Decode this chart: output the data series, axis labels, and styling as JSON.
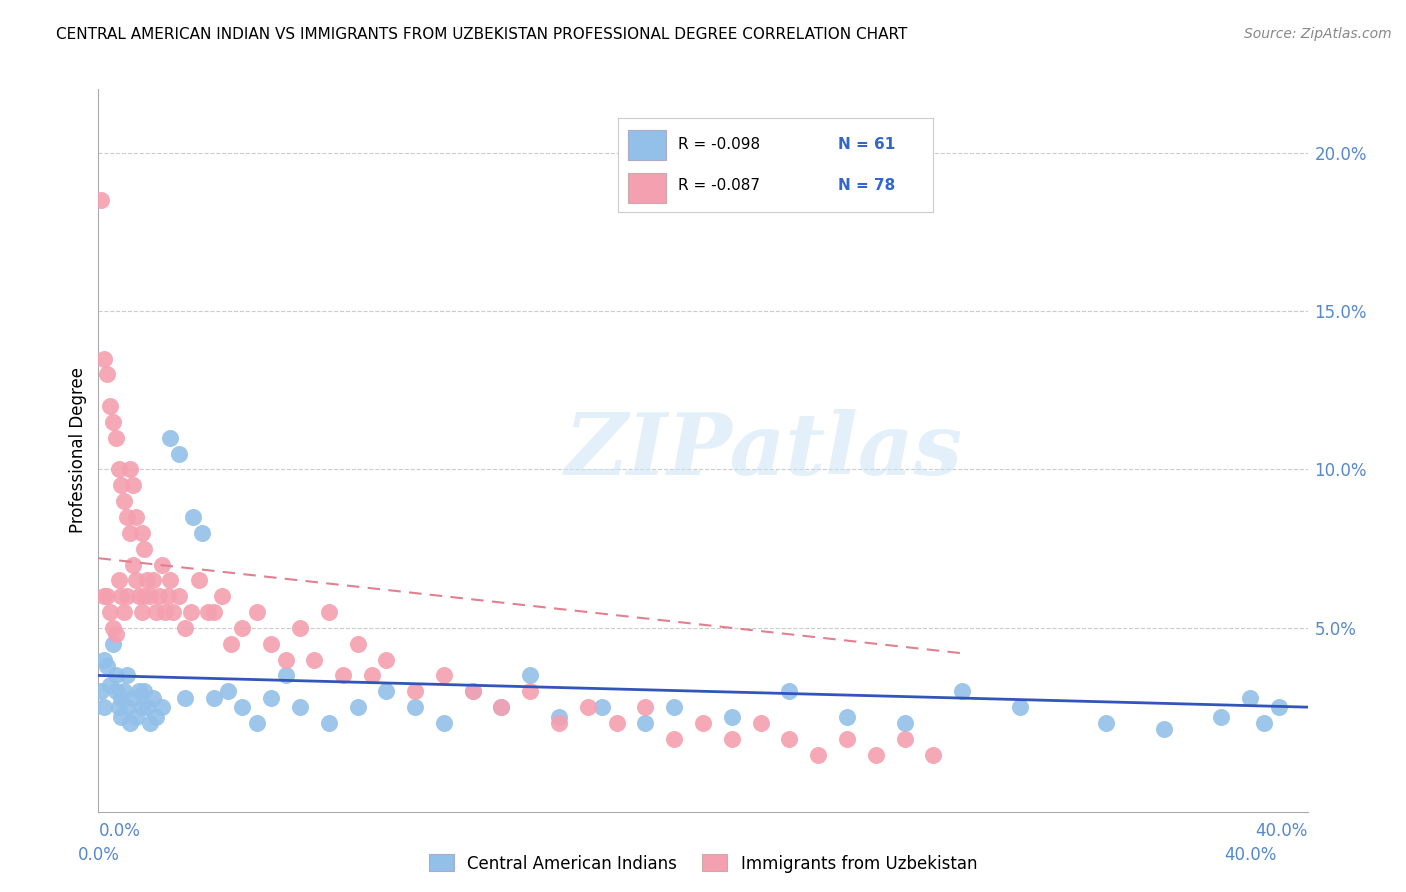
{
  "title": "CENTRAL AMERICAN INDIAN VS IMMIGRANTS FROM UZBEKISTAN PROFESSIONAL DEGREE CORRELATION CHART",
  "source": "Source: ZipAtlas.com",
  "ylabel": "Professional Degree",
  "xlim": [
    0.0,
    0.42
  ],
  "ylim": [
    -0.008,
    0.22
  ],
  "watermark": "ZIPatlas",
  "legend_label1": "Central American Indians",
  "legend_label2": "Immigrants from Uzbekistan",
  "blue_color": "#92c0e8",
  "pink_color": "#f4a0b0",
  "blue_line_color": "#3355bb",
  "pink_line_color": "#e08090",
  "right_ytick_vals": [
    0.0,
    0.05,
    0.1,
    0.15,
    0.2
  ],
  "right_ytick_labels": [
    "",
    "5.0%",
    "10.0%",
    "15.0%",
    "20.0%"
  ],
  "blue_scatter_x": [
    0.001,
    0.002,
    0.002,
    0.003,
    0.004,
    0.005,
    0.006,
    0.006,
    0.007,
    0.008,
    0.008,
    0.009,
    0.01,
    0.01,
    0.011,
    0.012,
    0.013,
    0.014,
    0.015,
    0.016,
    0.017,
    0.018,
    0.019,
    0.02,
    0.022,
    0.025,
    0.028,
    0.03,
    0.033,
    0.036,
    0.04,
    0.045,
    0.05,
    0.055,
    0.06,
    0.065,
    0.07,
    0.08,
    0.09,
    0.1,
    0.11,
    0.12,
    0.13,
    0.14,
    0.15,
    0.16,
    0.175,
    0.19,
    0.2,
    0.22,
    0.24,
    0.26,
    0.28,
    0.3,
    0.32,
    0.35,
    0.37,
    0.39,
    0.4,
    0.405,
    0.41
  ],
  "blue_scatter_y": [
    0.03,
    0.025,
    0.04,
    0.038,
    0.032,
    0.045,
    0.03,
    0.035,
    0.025,
    0.028,
    0.022,
    0.03,
    0.025,
    0.035,
    0.02,
    0.028,
    0.022,
    0.03,
    0.025,
    0.03,
    0.025,
    0.02,
    0.028,
    0.022,
    0.025,
    0.11,
    0.105,
    0.028,
    0.085,
    0.08,
    0.028,
    0.03,
    0.025,
    0.02,
    0.028,
    0.035,
    0.025,
    0.02,
    0.025,
    0.03,
    0.025,
    0.02,
    0.03,
    0.025,
    0.035,
    0.022,
    0.025,
    0.02,
    0.025,
    0.022,
    0.03,
    0.022,
    0.02,
    0.03,
    0.025,
    0.02,
    0.018,
    0.022,
    0.028,
    0.02,
    0.025
  ],
  "pink_scatter_x": [
    0.001,
    0.002,
    0.002,
    0.003,
    0.003,
    0.004,
    0.004,
    0.005,
    0.005,
    0.006,
    0.006,
    0.007,
    0.007,
    0.008,
    0.008,
    0.009,
    0.009,
    0.01,
    0.01,
    0.011,
    0.011,
    0.012,
    0.012,
    0.013,
    0.013,
    0.014,
    0.015,
    0.015,
    0.016,
    0.016,
    0.017,
    0.018,
    0.019,
    0.02,
    0.021,
    0.022,
    0.023,
    0.024,
    0.025,
    0.026,
    0.028,
    0.03,
    0.032,
    0.035,
    0.038,
    0.04,
    0.043,
    0.046,
    0.05,
    0.055,
    0.06,
    0.065,
    0.07,
    0.075,
    0.08,
    0.085,
    0.09,
    0.095,
    0.1,
    0.11,
    0.12,
    0.13,
    0.14,
    0.15,
    0.16,
    0.17,
    0.18,
    0.19,
    0.2,
    0.21,
    0.22,
    0.23,
    0.24,
    0.25,
    0.26,
    0.27,
    0.28,
    0.29
  ],
  "pink_scatter_y": [
    0.185,
    0.135,
    0.06,
    0.13,
    0.06,
    0.12,
    0.055,
    0.115,
    0.05,
    0.11,
    0.048,
    0.1,
    0.065,
    0.095,
    0.06,
    0.09,
    0.055,
    0.085,
    0.06,
    0.08,
    0.1,
    0.07,
    0.095,
    0.065,
    0.085,
    0.06,
    0.08,
    0.055,
    0.075,
    0.06,
    0.065,
    0.06,
    0.065,
    0.055,
    0.06,
    0.07,
    0.055,
    0.06,
    0.065,
    0.055,
    0.06,
    0.05,
    0.055,
    0.065,
    0.055,
    0.055,
    0.06,
    0.045,
    0.05,
    0.055,
    0.045,
    0.04,
    0.05,
    0.04,
    0.055,
    0.035,
    0.045,
    0.035,
    0.04,
    0.03,
    0.035,
    0.03,
    0.025,
    0.03,
    0.02,
    0.025,
    0.02,
    0.025,
    0.015,
    0.02,
    0.015,
    0.02,
    0.015,
    0.01,
    0.015,
    0.01,
    0.015,
    0.01
  ],
  "blue_trend_x": [
    0.0,
    0.42
  ],
  "blue_trend_y": [
    0.035,
    0.025
  ],
  "pink_trend_x": [
    0.0,
    0.3
  ],
  "pink_trend_y": [
    0.072,
    0.042
  ],
  "legend1_r": "R = -0.098",
  "legend1_n": "N = 61",
  "legend2_r": "R = -0.087",
  "legend2_n": "N = 78"
}
